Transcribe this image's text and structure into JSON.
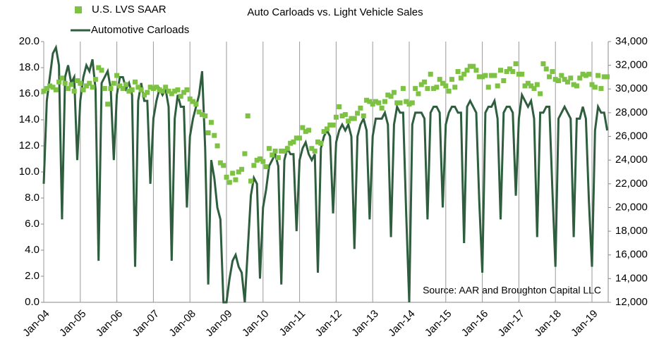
{
  "chart_data": {
    "type": "line",
    "title": "Auto Carloads vs. Light Vehicle Sales",
    "annotation": "Source: AAR and Broughton Capital LLC",
    "legend": "top-left",
    "grid": "x",
    "categories": [
      "Jan-04",
      null,
      null,
      null,
      null,
      null,
      null,
      null,
      null,
      null,
      null,
      null,
      "Jan-05",
      null,
      null,
      null,
      null,
      null,
      null,
      null,
      null,
      null,
      null,
      null,
      "Jan-06",
      null,
      null,
      null,
      null,
      null,
      null,
      null,
      null,
      null,
      null,
      null,
      "Jan-07",
      null,
      null,
      null,
      null,
      null,
      null,
      null,
      null,
      null,
      null,
      null,
      "Jan-08",
      null,
      null,
      null,
      null,
      null,
      null,
      null,
      null,
      null,
      null,
      null,
      "Jan-09",
      null,
      null,
      null,
      null,
      null,
      null,
      null,
      null,
      null,
      null,
      null,
      "Jan-10",
      null,
      null,
      null,
      null,
      null,
      null,
      null,
      null,
      null,
      null,
      null,
      "Jan-11",
      null,
      null,
      null,
      null,
      null,
      null,
      null,
      null,
      null,
      null,
      null,
      "Jan-12",
      null,
      null,
      null,
      null,
      null,
      null,
      null,
      null,
      null,
      null,
      null,
      "Jan-13",
      null,
      null,
      null,
      null,
      null,
      null,
      null,
      null,
      null,
      null,
      null,
      "Jan-14",
      null,
      null,
      null,
      null,
      null,
      null,
      null,
      null,
      null,
      null,
      null,
      "Jan-15",
      null,
      null,
      null,
      null,
      null,
      null,
      null,
      null,
      null,
      null,
      null,
      "Jan-16",
      null,
      null,
      null,
      null,
      null,
      null,
      null,
      null,
      null,
      null,
      null,
      "Jan-17",
      null,
      null,
      null,
      null,
      null,
      null,
      null,
      null,
      null,
      null,
      null,
      "Jan-18",
      null,
      null,
      null,
      null,
      null,
      null,
      null,
      null,
      null,
      null,
      null,
      "Jan-19",
      null,
      null,
      null,
      null,
      null
    ],
    "ylim": [
      0,
      20
    ],
    "yticks": [
      {
        "value": 0,
        "label": "0.0"
      },
      {
        "value": 2,
        "label": "2.0"
      },
      {
        "value": 4,
        "label": "4.0"
      },
      {
        "value": 6,
        "label": "6.0"
      },
      {
        "value": 8,
        "label": "8.0"
      },
      {
        "value": 10,
        "label": "10.0"
      },
      {
        "value": 12,
        "label": "12.0"
      },
      {
        "value": 14,
        "label": "14.0"
      },
      {
        "value": 16,
        "label": "16.0"
      },
      {
        "value": 18,
        "label": "18.0"
      },
      {
        "value": 20,
        "label": "20.0"
      }
    ],
    "y2lim": [
      12000,
      34000
    ],
    "y2ticks": [
      {
        "value": 12000,
        "label": "12,000"
      },
      {
        "value": 14000,
        "label": "14,000"
      },
      {
        "value": 16000,
        "label": "16,000"
      },
      {
        "value": 18000,
        "label": "18,000"
      },
      {
        "value": 20000,
        "label": "20,000"
      },
      {
        "value": 22000,
        "label": "22,000"
      },
      {
        "value": 24000,
        "label": "24,000"
      },
      {
        "value": 26000,
        "label": "26,000"
      },
      {
        "value": 28000,
        "label": "28,000"
      },
      {
        "value": 30000,
        "label": "30,000"
      },
      {
        "value": 32000,
        "label": "32,000"
      },
      {
        "value": 34000,
        "label": "34,000"
      }
    ],
    "series": [
      {
        "name": "U.S. LVS SAAR",
        "color": "#7dc242",
        "marker": "square",
        "values": [
          16.2,
          16.4,
          16.6,
          16.5,
          16.3,
          16.9,
          17.2,
          16.8,
          16.4,
          16.7,
          16.2,
          17.0,
          16.8,
          16.3,
          16.6,
          16.8,
          16.5,
          17.1,
          18.0,
          17.8,
          16.4,
          15.2,
          16.4,
          16.8,
          17.4,
          16.6,
          16.4,
          16.7,
          16.2,
          16.3,
          16.9,
          16.5,
          16.3,
          15.9,
          16.1,
          16.5,
          16.4,
          16.5,
          16.3,
          16.2,
          16.5,
          16.2,
          16.0,
          16.2,
          16.3,
          15.8,
          16.1,
          16.3,
          15.6,
          15.4,
          15.2,
          14.6,
          14.4,
          14.3,
          13.0,
          13.8,
          12.8,
          12.0,
          10.7,
          10.5,
          9.6,
          9.2,
          9.9,
          9.4,
          10.0,
          10.2,
          11.4,
          14.3,
          9.3,
          10.5,
          10.9,
          11.0,
          10.8,
          10.4,
          11.8,
          11.3,
          11.6,
          11.1,
          11.6,
          11.6,
          11.8,
          12.2,
          12.3,
          12.6,
          12.6,
          13.4,
          13.1,
          13.2,
          11.8,
          11.6,
          12.3,
          12.2,
          13.1,
          13.3,
          13.6,
          13.6,
          14.2,
          15.0,
          14.3,
          14.4,
          13.9,
          14.1,
          14.1,
          14.5,
          14.9,
          14.3,
          15.5,
          15.4,
          15.2,
          15.4,
          15.3,
          14.9,
          15.4,
          15.9,
          15.8,
          16.1,
          15.3,
          15.3,
          16.4,
          15.4,
          15.2,
          15.3,
          16.4,
          16.0,
          16.7,
          16.9,
          16.4,
          17.5,
          16.4,
          16.5,
          17.1,
          16.8,
          16.6,
          16.2,
          17.1,
          16.5,
          17.7,
          17.2,
          17.5,
          17.8,
          18.1,
          18.1,
          17.8,
          17.3,
          17.3,
          17.4,
          16.5,
          17.4,
          17.4,
          16.6,
          17.8,
          17.0,
          17.7,
          17.9,
          17.7,
          18.3,
          17.5,
          17.5,
          16.6,
          16.8,
          16.6,
          16.4,
          16.7,
          16.0,
          18.3,
          17.9,
          17.3,
          17.7,
          17.1,
          17.0,
          17.4,
          17.1,
          16.9,
          17.2,
          16.7,
          16.6,
          17.2,
          17.5,
          17.4,
          17.5,
          16.7,
          16.5,
          17.4,
          16.4,
          17.3,
          17.3
        ]
      },
      {
        "name": "Automotive Carloads",
        "color": "#2e5e3e",
        "axis": "y2",
        "values": [
          22000,
          29000,
          31000,
          33000,
          33500,
          32000,
          19000,
          31000,
          32000,
          30500,
          31000,
          24000,
          29000,
          31000,
          32000,
          31500,
          32500,
          30000,
          15500,
          30500,
          31000,
          31500,
          30000,
          24000,
          29500,
          31000,
          31000,
          30000,
          30500,
          29500,
          15000,
          29000,
          30500,
          29000,
          29000,
          22000,
          27500,
          29000,
          30000,
          29500,
          30000,
          28500,
          15500,
          27500,
          29500,
          28500,
          28500,
          20000,
          26000,
          27500,
          28500,
          29500,
          31500,
          25000,
          13500,
          24000,
          22500,
          20000,
          19000,
          12000,
          12000,
          14000,
          15500,
          16000,
          15000,
          14500,
          12000,
          16500,
          21000,
          22500,
          22000,
          14000,
          20000,
          21500,
          23500,
          24000,
          24500,
          23500,
          13500,
          24000,
          25000,
          24500,
          24500,
          18000,
          24000,
          25000,
          25500,
          24500,
          24000,
          24500,
          14500,
          25000,
          26000,
          26500,
          26000,
          19500,
          25500,
          26500,
          27000,
          26500,
          27000,
          26000,
          16500,
          26000,
          27000,
          27500,
          26500,
          19000,
          26000,
          27500,
          27500,
          27500,
          28000,
          27000,
          17500,
          27000,
          28500,
          28000,
          28000,
          19500,
          12000,
          27000,
          28000,
          28000,
          28000,
          27500,
          19000,
          28000,
          28500,
          28500,
          28000,
          20000,
          27000,
          28000,
          28500,
          28500,
          28000,
          28000,
          17000,
          28500,
          29000,
          28500,
          28000,
          20500,
          14500,
          28000,
          28500,
          28500,
          29000,
          27500,
          19000,
          28000,
          28500,
          28500,
          28000,
          21000,
          27500,
          29500,
          29000,
          28500,
          29000,
          27500,
          17500,
          28000,
          28000,
          28500,
          28500,
          21500,
          15000,
          27500,
          28000,
          28500,
          28000,
          27500,
          17500,
          27500,
          27500,
          28500,
          27500,
          20500,
          15000,
          26500,
          28500,
          28000,
          28000,
          26500
        ]
      }
    ]
  }
}
